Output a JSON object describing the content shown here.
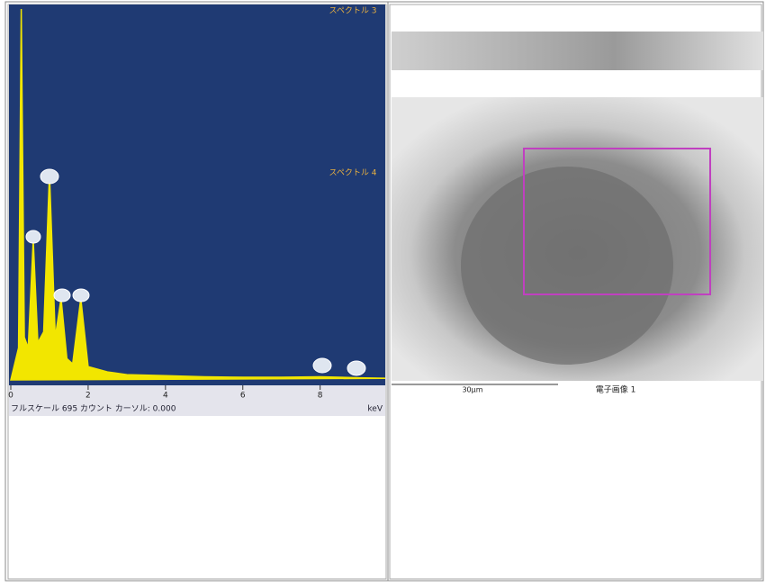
{
  "chart_data": {
    "type": "line",
    "x": [
      0,
      0.2,
      0.27,
      0.35,
      0.45,
      0.58,
      0.7,
      0.85,
      1.0,
      1.15,
      1.3,
      1.45,
      1.6,
      1.81,
      2.0,
      2.5,
      3,
      4,
      5,
      6,
      7,
      8,
      9,
      9.8
    ],
    "values": [
      0,
      60,
      695,
      80,
      60,
      262,
      70,
      90,
      387,
      80,
      153,
      40,
      30,
      153,
      25,
      15,
      10,
      8,
      6,
      5,
      5,
      6,
      4,
      3
    ],
    "color": "#f2e600",
    "xlim": [
      0,
      9.8
    ],
    "xticks": [
      0,
      2,
      4,
      6,
      8
    ],
    "ylim": [
      0,
      695
    ],
    "xlabel": "keV",
    "annotations": [
      "スペクトル 3",
      "スペクトル 4"
    ],
    "footer": "フルスケール 695 カウント カーソル: 0.000"
  },
  "image_panel": {
    "scale_bar": "30µm",
    "caption": "電子画像 1"
  }
}
